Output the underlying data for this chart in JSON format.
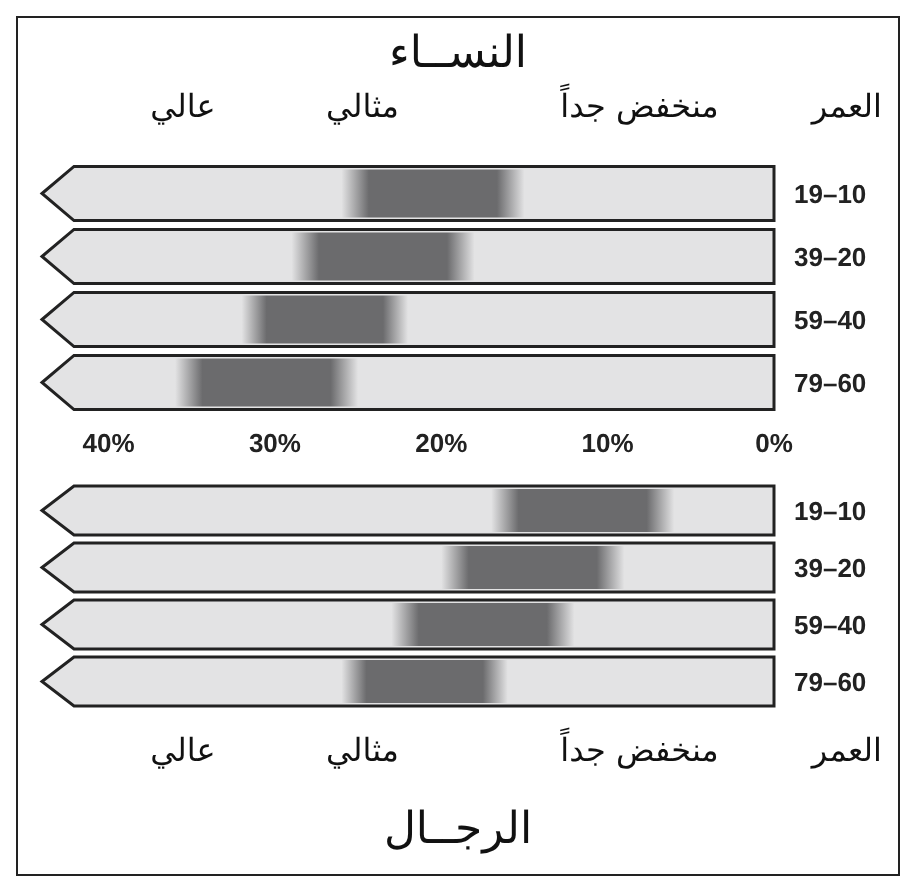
{
  "chart_data": [
    {
      "type": "bar",
      "orientation": "horizontal",
      "title": "النســاء",
      "ylabel": "العمر",
      "annotations": [
        "منخفض جداً",
        "مثالي",
        "عالي"
      ],
      "categories": [
        "19–10",
        "39–20",
        "59–40",
        "79–60"
      ],
      "base": [
        15,
        18,
        22,
        25
      ],
      "values": [
        11,
        11,
        10,
        11
      ],
      "color": "#6b6b6d",
      "xlim": [
        44,
        0
      ],
      "xticks": [
        {
          "value": 0,
          "label": "0%"
        },
        {
          "value": 10,
          "label": "10%"
        },
        {
          "value": 20,
          "label": "20%"
        },
        {
          "value": 30,
          "label": "30%"
        },
        {
          "value": 40,
          "label": "40%"
        }
      ]
    },
    {
      "type": "bar",
      "orientation": "horizontal",
      "title": "الرجــال",
      "ylabel": "العمر",
      "annotations": [
        "منخفض جداً",
        "مثالي",
        "عالي"
      ],
      "categories": [
        "19–10",
        "39–20",
        "59–40",
        "79–60"
      ],
      "base": [
        6,
        9,
        12,
        16
      ],
      "values": [
        11,
        11,
        11,
        10
      ],
      "color": "#6b6b6d",
      "xlim": [
        44,
        0
      ],
      "tick_labels": "y"
    }
  ]
}
